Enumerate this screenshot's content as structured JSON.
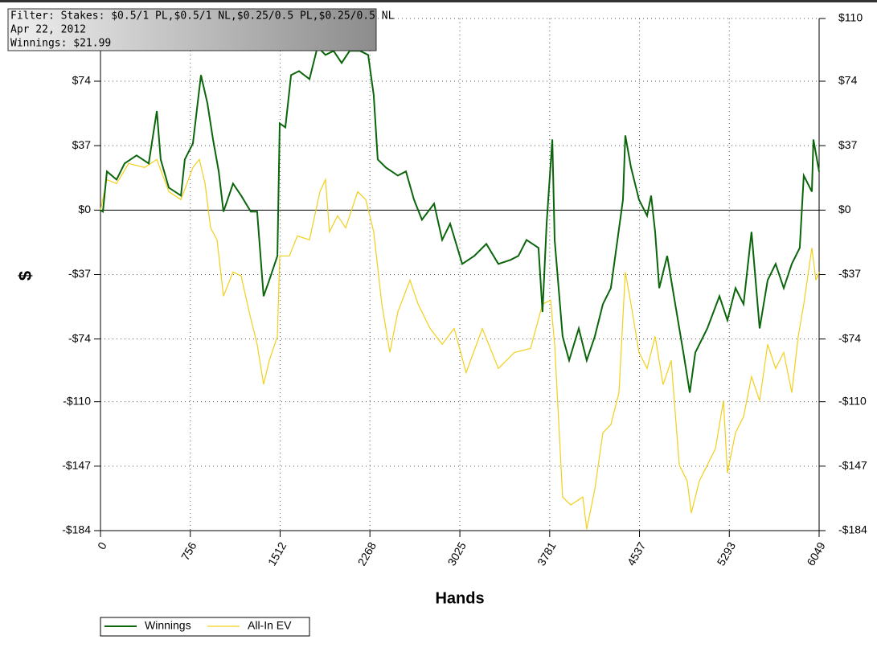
{
  "chart_data": {
    "type": "line",
    "tooltip": [
      "Filter: Stakes: $0.5/1 PL,$0.5/1 NL,$0.25/0.5 PL,$0.25/0.5 NL",
      "Apr 22, 2012",
      "Winnings: $21.99"
    ],
    "x_label": "Hands",
    "y_label": "$",
    "xlim": [
      0,
      6049
    ],
    "xticks": [
      0,
      756,
      1512,
      2268,
      3025,
      3781,
      4537,
      5293,
      6049
    ],
    "ylim": [
      -184,
      110
    ],
    "yticks": [
      {
        "value": 110,
        "label": "$110"
      },
      {
        "value": 74,
        "label": "$74"
      },
      {
        "value": 37,
        "label": "$37"
      },
      {
        "value": 0,
        "label": "$0"
      },
      {
        "value": -37,
        "label": "-$37"
      },
      {
        "value": -74,
        "label": "-$74"
      },
      {
        "value": -110,
        "label": "-$110"
      },
      {
        "value": -147,
        "label": "-$147"
      },
      {
        "value": -184,
        "label": "-$184"
      }
    ],
    "grid": true,
    "series": [
      {
        "name": "Winnings",
        "color": "#0b650b",
        "x": [
          0,
          20,
          54,
          135,
          203,
          304,
          406,
          474,
          507,
          575,
          677,
          710,
          778,
          846,
          900,
          947,
          995,
          1035,
          1116,
          1184,
          1265,
          1319,
          1373,
          1421,
          1489,
          1509,
          1556,
          1604,
          1671,
          1759,
          1827,
          1894,
          1962,
          2030,
          2097,
          2185,
          2253,
          2300,
          2334,
          2402,
          2503,
          2571,
          2639,
          2706,
          2808,
          2876,
          2943,
          3045,
          3146,
          3248,
          3349,
          3451,
          3518,
          3586,
          3687,
          3721,
          3755,
          3803,
          3823,
          3890,
          3945,
          4026,
          4093,
          4161,
          4229,
          4296,
          4398,
          4418,
          4466,
          4533,
          4601,
          4635,
          4669,
          4703,
          4770,
          4838,
          4906,
          4960,
          5007,
          5108,
          5210,
          5277,
          5345,
          5413,
          5480,
          5548,
          5616,
          5683,
          5751,
          5819,
          5886,
          5920,
          5988,
          6001,
          6049
        ],
        "values": [
          0,
          -0.9,
          22.2,
          17.5,
          26.8,
          31.4,
          26.8,
          56.9,
          29.1,
          12.9,
          8.3,
          29.1,
          38.3,
          77.5,
          61.4,
          40.6,
          22.2,
          -0.9,
          15.2,
          8.3,
          -0.9,
          -0.9,
          -49.4,
          -40.2,
          -26.3,
          49.8,
          47.5,
          77.5,
          79.8,
          75.2,
          93.7,
          89.1,
          91.4,
          84.5,
          91.4,
          91.4,
          89.1,
          66.0,
          29.1,
          24.5,
          19.8,
          22.2,
          6.0,
          -5.5,
          3.7,
          -17.1,
          -7.8,
          -30.9,
          -26.3,
          -19.4,
          -30.9,
          -28.6,
          -26.3,
          -17.1,
          -21.7,
          -58.5,
          -7.8,
          40.6,
          -17.1,
          -72.5,
          -86.3,
          -67.9,
          -86.3,
          -72.5,
          -54.0,
          -44.8,
          6.0,
          42.9,
          24.5,
          6.0,
          -3.2,
          8.3,
          -12.5,
          -44.8,
          -26.3,
          -54.0,
          -81.7,
          -104.8,
          -81.7,
          -67.9,
          -49.4,
          -63.2,
          -44.8,
          -54.0,
          -12.5,
          -67.9,
          -40.2,
          -30.9,
          -44.8,
          -30.9,
          -21.7,
          19.8,
          10.6,
          40.6,
          21.99
        ]
      },
      {
        "name": "All-In EV",
        "color": "#f2cf1a",
        "x": [
          0,
          54,
          135,
          237,
          372,
          474,
          575,
          677,
          778,
          832,
          880,
          927,
          981,
          1035,
          1116,
          1184,
          1252,
          1319,
          1373,
          1421,
          1489,
          1509,
          1590,
          1658,
          1759,
          1847,
          1894,
          1928,
          1996,
          2064,
          2165,
          2233,
          2300,
          2368,
          2436,
          2503,
          2605,
          2673,
          2774,
          2876,
          2977,
          3078,
          3214,
          3349,
          3484,
          3620,
          3721,
          3789,
          3823,
          3890,
          3958,
          4060,
          4093,
          4161,
          4229,
          4296,
          4364,
          4418,
          4466,
          4533,
          4601,
          4669,
          4736,
          4804,
          4872,
          4939,
          4973,
          5041,
          5108,
          5176,
          5244,
          5277,
          5345,
          5413,
          5480,
          5548,
          5616,
          5683,
          5751,
          5819,
          5873,
          5920,
          5988,
          6022,
          6049
        ],
        "values": [
          0,
          17.5,
          15.2,
          26.8,
          24.5,
          29.1,
          10.6,
          6.0,
          24.5,
          29.1,
          15.2,
          -10.2,
          -17.1,
          -49.4,
          -35.5,
          -37.8,
          -58.5,
          -77.0,
          -100.0,
          -86.3,
          -72.5,
          -26.3,
          -26.3,
          -14.8,
          -17.1,
          10.6,
          17.5,
          -12.5,
          -3.2,
          -10.2,
          10.6,
          6.0,
          -12.5,
          -54.0,
          -81.7,
          -58.5,
          -40.2,
          -54.0,
          -67.9,
          -77.0,
          -67.9,
          -93.3,
          -67.9,
          -90.9,
          -81.7,
          -79.4,
          -54.0,
          -51.7,
          -77.0,
          -164.7,
          -169.3,
          -164.7,
          -183.2,
          -160.1,
          -127.8,
          -123.2,
          -104.8,
          -35.5,
          -54.0,
          -81.7,
          -90.9,
          -72.5,
          -100.2,
          -86.3,
          -146.3,
          -155.5,
          -173.9,
          -155.5,
          -146.3,
          -137.0,
          -109.4,
          -150.9,
          -127.8,
          -118.6,
          -95.6,
          -109.4,
          -77.0,
          -90.9,
          -81.7,
          -104.8,
          -72.5,
          -54.0,
          -21.7,
          -40.2,
          -35.5
        ]
      }
    ]
  }
}
